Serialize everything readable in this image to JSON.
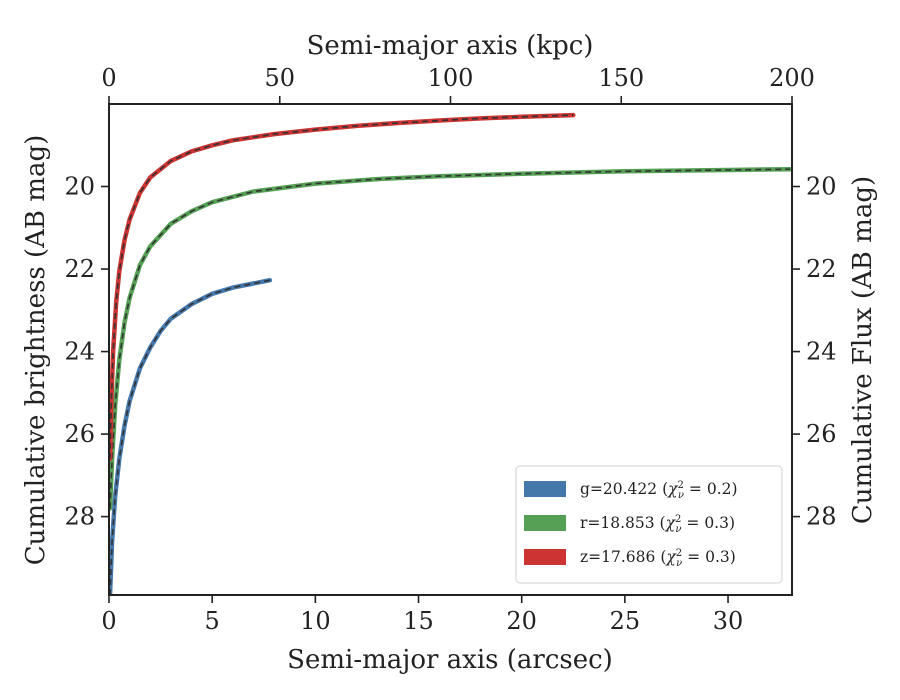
{
  "chart_data": {
    "type": "line",
    "xlabel": "Semi-major axis (arcsec)",
    "x2label": "Semi-major axis (kpc)",
    "ylabel": "Cumulative brightness (AB mag)",
    "y2label": "Cumulative Flux (AB mag)",
    "xlim": [
      0,
      33.1
    ],
    "x2lim": [
      0,
      200
    ],
    "ylim": [
      29.9,
      18.0
    ],
    "inverted_y": true,
    "x_ticks": [
      0,
      5,
      10,
      15,
      20,
      25,
      30
    ],
    "x_tick_labels": [
      "0",
      "5",
      "10",
      "15",
      "20",
      "25",
      "30"
    ],
    "x2_ticks": [
      0,
      50,
      100,
      150,
      200
    ],
    "x2_tick_labels": [
      "0",
      "50",
      "100",
      "150",
      "200"
    ],
    "y_ticks": [
      20,
      22,
      24,
      26,
      28
    ],
    "y_tick_labels": [
      "20",
      "22",
      "24",
      "26",
      "28"
    ],
    "legend_position": "lower-right",
    "grid": false,
    "series": [
      {
        "name": "g",
        "legend": "g=20.422 ",
        "legend_mag": "0.2",
        "color": "#4477aa",
        "x": [
          0.05,
          0.15,
          0.3,
          0.5,
          0.75,
          1.0,
          1.5,
          2.0,
          2.5,
          3.0,
          4.0,
          5.0,
          6.0,
          7.0,
          7.8
        ],
        "y": [
          29.9,
          28.6,
          27.5,
          26.6,
          25.8,
          25.2,
          24.4,
          23.9,
          23.5,
          23.2,
          22.85,
          22.6,
          22.45,
          22.35,
          22.27
        ]
      },
      {
        "name": "r",
        "legend": "r=18.853 ",
        "legend_mag": "0.3",
        "color": "#55a055",
        "x": [
          0.05,
          0.15,
          0.3,
          0.5,
          0.75,
          1.0,
          1.5,
          2.0,
          3.0,
          4.0,
          5.0,
          7.0,
          10.0,
          13.0,
          16.0,
          20.0,
          25.0,
          30.0,
          33.0
        ],
        "y": [
          27.8,
          26.6,
          25.3,
          24.2,
          23.3,
          22.7,
          21.9,
          21.45,
          20.9,
          20.6,
          20.38,
          20.12,
          19.93,
          19.82,
          19.75,
          19.69,
          19.63,
          19.6,
          19.58
        ]
      },
      {
        "name": "z",
        "legend": "z=17.686 ",
        "legend_mag": "0.3",
        "color": "#cc3333",
        "x": [
          0.05,
          0.1,
          0.2,
          0.35,
          0.5,
          0.75,
          1.0,
          1.5,
          2.0,
          3.0,
          4.0,
          5.0,
          6.0,
          8.0,
          10.0,
          12.0,
          14.0,
          16.0,
          18.0,
          20.0,
          22.5
        ],
        "y": [
          26.6,
          25.4,
          24.0,
          22.8,
          22.05,
          21.3,
          20.8,
          20.15,
          19.78,
          19.38,
          19.15,
          19.0,
          18.88,
          18.73,
          18.62,
          18.53,
          18.46,
          18.4,
          18.35,
          18.31,
          18.27
        ]
      }
    ]
  }
}
